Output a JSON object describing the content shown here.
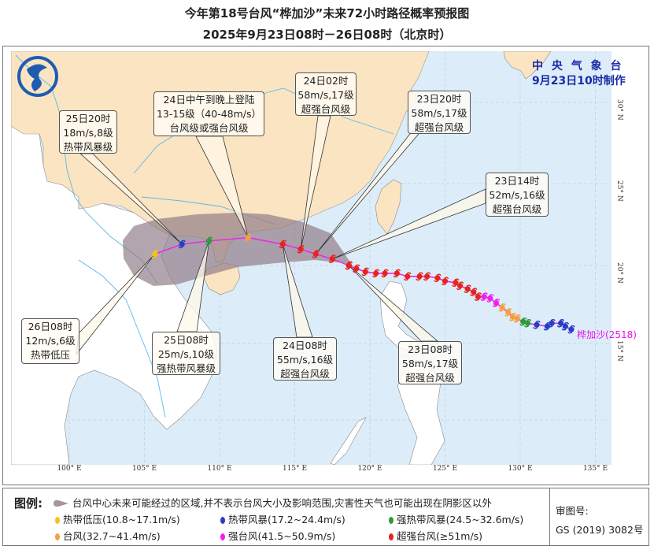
{
  "title": {
    "line1": "今年第18号台风“桦加沙”未来72小时路径概率预报图",
    "line2": "2025年9月23日08时－26日08时（北京时）"
  },
  "agency": {
    "name": "中 央 气 象 台",
    "issued": "9月23日10时制作"
  },
  "logo": "cma-dragon-logo",
  "storm_label": "桦加沙(2518)",
  "categories": {
    "TD": {
      "name": "热带低压",
      "range": "(10.8~17.1m/s)",
      "color": "#f2c419"
    },
    "TS": {
      "name": "热带风暴",
      "range": "(17.2~24.4m/s)",
      "color": "#2a3cc8"
    },
    "STS": {
      "name": "强热带风暴",
      "range": "(24.5~32.6m/s)",
      "color": "#2e9a3a"
    },
    "TY": {
      "name": "台风",
      "range": "(32.7~41.4m/s)",
      "color": "#f5a040"
    },
    "STY": {
      "name": "强台风",
      "range": "(41.5~50.9m/s)",
      "color": "#f020f0"
    },
    "SuperTY": {
      "name": "超强台风",
      "range": "(≥51m/s)",
      "color": "#e8221c"
    }
  },
  "forecast_points": [
    {
      "lon": 118.6,
      "lat": 20.0,
      "cat": "SuperTY",
      "lines": [
        "23日08时",
        "58m/s,17级",
        "超强台风级"
      ]
    },
    {
      "lon": 117.5,
      "lat": 20.4,
      "cat": "SuperTY",
      "lines": [
        "23日14时",
        "52m/s,16级",
        "超强台风级"
      ]
    },
    {
      "lon": 116.4,
      "lat": 20.7,
      "cat": "SuperTY",
      "lines": [
        "23日20时",
        "58m/s,17级",
        "超强台风级"
      ]
    },
    {
      "lon": 115.4,
      "lat": 21.0,
      "cat": "SuperTY",
      "lines": [
        "24日02时",
        "58m/s,17级",
        "超强台风级"
      ]
    },
    {
      "lon": 114.2,
      "lat": 21.3,
      "cat": "SuperTY",
      "lines": [
        "24日08时",
        "55m/s,16级",
        "超强台风级"
      ]
    },
    {
      "lon": 111.9,
      "lat": 21.7,
      "cat": "TY",
      "lines": [
        "24日中午到晚上登陆",
        "13-15级（40-48m/s）",
        "台风级或强台风级"
      ]
    },
    {
      "lon": 109.3,
      "lat": 21.5,
      "cat": "STS",
      "lines": [
        "25日08时",
        "25m/s,10级",
        "强热带风暴级"
      ]
    },
    {
      "lon": 107.5,
      "lat": 21.3,
      "cat": "TS",
      "lines": [
        "25日20时",
        "18m/s,8级",
        "热带风暴级"
      ]
    },
    {
      "lon": 105.7,
      "lat": 20.7,
      "cat": "TD",
      "lines": [
        "26日08时",
        "12m/s,6级",
        "热带低压"
      ]
    }
  ],
  "past_track": [
    {
      "lon": 133.4,
      "lat": 15.9,
      "cat": "TS"
    },
    {
      "lon": 133.0,
      "lat": 16.1,
      "cat": "TS"
    },
    {
      "lon": 132.7,
      "lat": 16.3,
      "cat": "TS"
    },
    {
      "lon": 132.1,
      "lat": 16.3,
      "cat": "TS"
    },
    {
      "lon": 131.8,
      "lat": 16.1,
      "cat": "TS"
    },
    {
      "lon": 131.1,
      "lat": 16.2,
      "cat": "TS"
    },
    {
      "lon": 130.5,
      "lat": 16.3,
      "cat": "STS"
    },
    {
      "lon": 130.2,
      "lat": 16.4,
      "cat": "STS"
    },
    {
      "lon": 129.8,
      "lat": 16.6,
      "cat": "TY"
    },
    {
      "lon": 129.5,
      "lat": 16.7,
      "cat": "TY"
    },
    {
      "lon": 129.2,
      "lat": 17.0,
      "cat": "TY"
    },
    {
      "lon": 128.8,
      "lat": 17.3,
      "cat": "TY"
    },
    {
      "lon": 128.4,
      "lat": 17.6,
      "cat": "STY"
    },
    {
      "lon": 128.0,
      "lat": 17.9,
      "cat": "STY"
    },
    {
      "lon": 127.6,
      "lat": 18.0,
      "cat": "STY"
    },
    {
      "lon": 127.2,
      "lat": 18.0,
      "cat": "SuperTY"
    },
    {
      "lon": 126.9,
      "lat": 18.3,
      "cat": "SuperTY"
    },
    {
      "lon": 126.5,
      "lat": 18.5,
      "cat": "SuperTY"
    },
    {
      "lon": 126.0,
      "lat": 18.7,
      "cat": "SuperTY"
    },
    {
      "lon": 125.7,
      "lat": 18.9,
      "cat": "SuperTY"
    },
    {
      "lon": 125.0,
      "lat": 19.0,
      "cat": "SuperTY"
    },
    {
      "lon": 124.5,
      "lat": 19.2,
      "cat": "SuperTY"
    },
    {
      "lon": 123.8,
      "lat": 19.3,
      "cat": "SuperTY"
    },
    {
      "lon": 123.3,
      "lat": 19.3,
      "cat": "SuperTY"
    },
    {
      "lon": 122.5,
      "lat": 19.3,
      "cat": "SuperTY"
    },
    {
      "lon": 121.8,
      "lat": 19.5,
      "cat": "SuperTY"
    },
    {
      "lon": 121.0,
      "lat": 19.5,
      "cat": "SuperTY"
    },
    {
      "lon": 120.4,
      "lat": 19.5,
      "cat": "SuperTY"
    },
    {
      "lon": 119.7,
      "lat": 19.6,
      "cat": "SuperTY"
    },
    {
      "lon": 119.1,
      "lat": 19.8,
      "cat": "SuperTY"
    },
    {
      "lon": 118.6,
      "lat": 20.0,
      "cat": "SuperTY"
    }
  ],
  "axes": {
    "lon_ticks": [
      "100° E",
      "105° E",
      "110° E",
      "115° E",
      "120° E",
      "125° E",
      "130° E",
      "135° E"
    ],
    "lon_values": [
      100,
      105,
      110,
      115,
      120,
      125,
      130,
      135
    ],
    "lat_ticks": [
      "30° N",
      "25° N",
      "20° N",
      "15° N"
    ],
    "lat_values": [
      30,
      25,
      20,
      15
    ]
  },
  "legend": {
    "label": "图例:",
    "cone_text": "台风中心未来可能经过的区域,并不表示台风大小及影响范围,灾害性天气也可能出现在阴影区以外",
    "cone_color": "#8f7a86"
  },
  "review": {
    "label": "审图号:",
    "number": "GS (2019) 3082号"
  }
}
